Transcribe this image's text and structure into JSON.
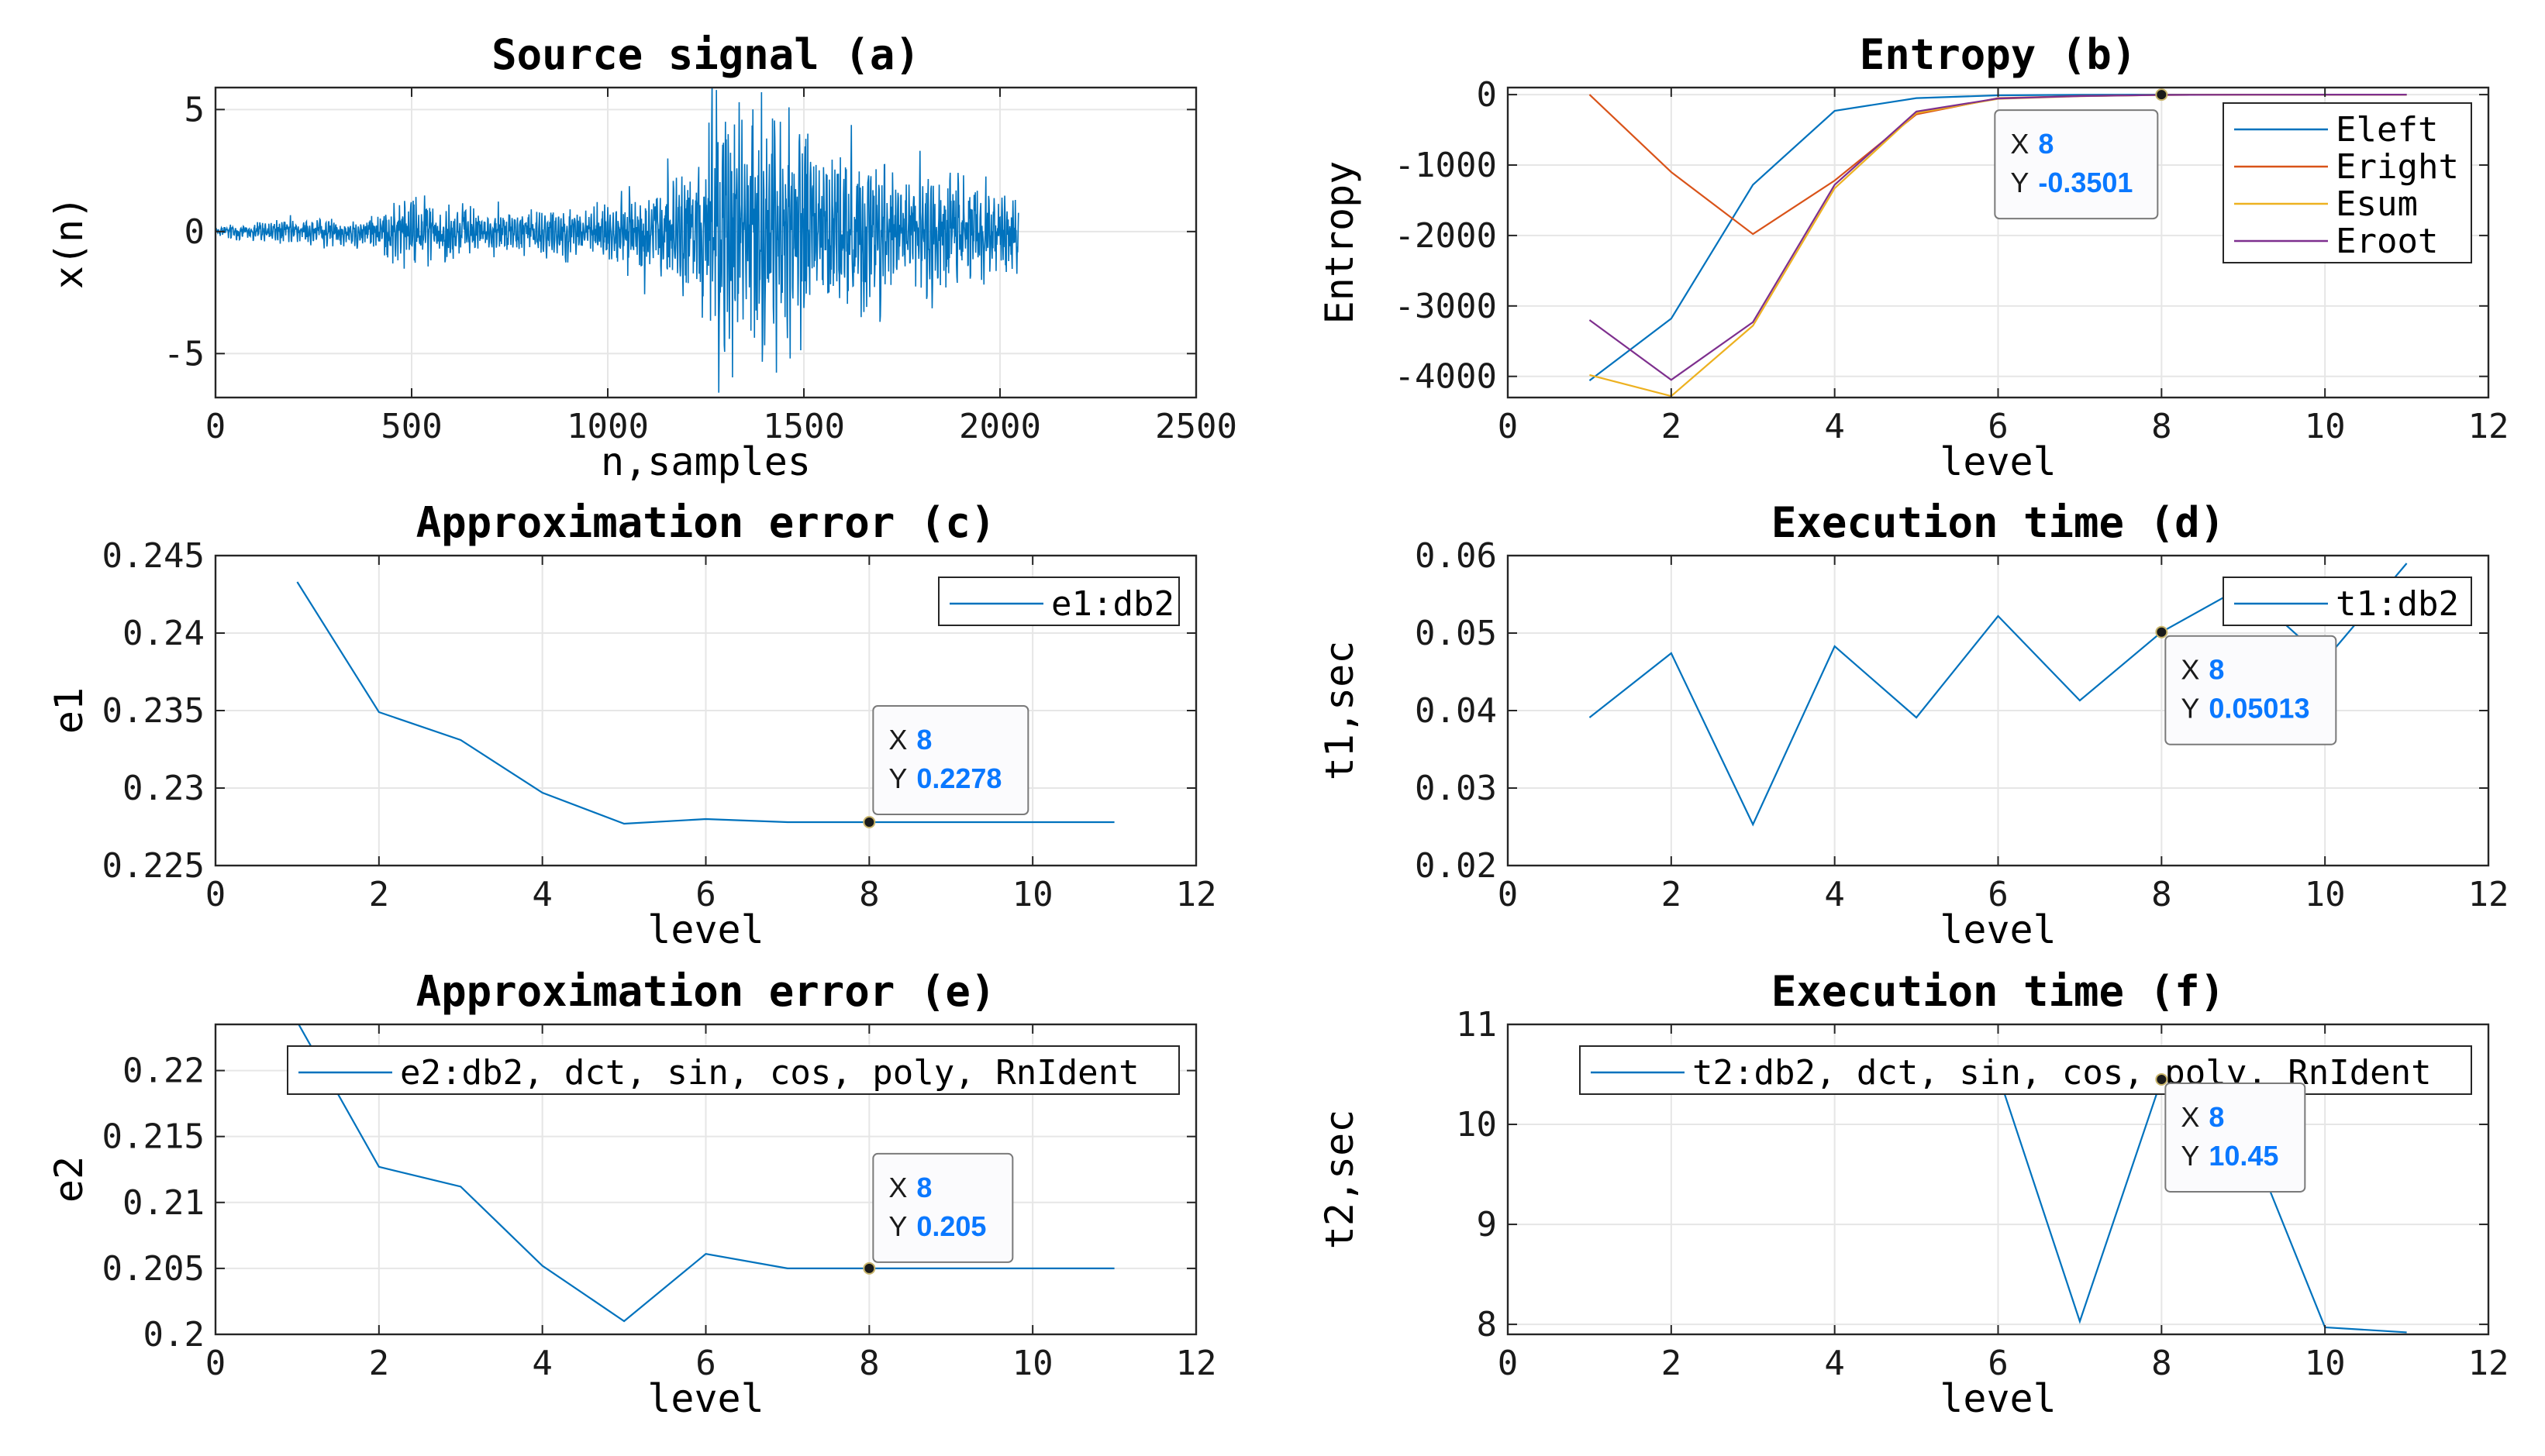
{
  "chart_data": [
    {
      "id": "a",
      "type": "line",
      "title": "Source signal (a)",
      "xlabel": "n,samples",
      "ylabel": "x(n)",
      "xlim": [
        0,
        2500
      ],
      "ylim": [
        -6.8,
        5.9
      ],
      "xticks": [
        0,
        500,
        1000,
        1500,
        2000,
        2500
      ],
      "yticks": [
        -5,
        0,
        5
      ],
      "signal": {
        "n_samples": 2048,
        "envelope": [
          [
            0,
            0.15
          ],
          [
            100,
            0.3
          ],
          [
            200,
            0.35
          ],
          [
            300,
            0.4
          ],
          [
            420,
            0.55
          ],
          [
            480,
            1.0
          ],
          [
            560,
            0.8
          ],
          [
            700,
            0.6
          ],
          [
            850,
            0.7
          ],
          [
            980,
            0.7
          ],
          [
            1030,
            0.95
          ],
          [
            1150,
            1.6
          ],
          [
            1240,
            2.4
          ],
          [
            1270,
            3.5
          ],
          [
            1320,
            3.6
          ],
          [
            1450,
            3.0
          ],
          [
            1550,
            2.4
          ],
          [
            1700,
            2.0
          ],
          [
            1850,
            1.6
          ],
          [
            1950,
            1.5
          ],
          [
            2048,
            1.2
          ]
        ],
        "spikes": [
          [
            1277,
            5.8
          ],
          [
            1283,
            -6.6
          ],
          [
            1300,
            4.5
          ],
          [
            1310,
            -4.4
          ],
          [
            1440,
            4.5
          ],
          [
            1465,
            -5.2
          ],
          [
            1505,
            3.8
          ]
        ]
      },
      "series": [
        {
          "name": "x(n)",
          "color": "#0072BD"
        }
      ]
    },
    {
      "id": "b",
      "type": "line",
      "title": "Entropy (b)",
      "xlabel": "level",
      "ylabel": "Entropy",
      "xlim": [
        0,
        12
      ],
      "ylim": [
        -4300,
        100
      ],
      "xticks": [
        0,
        2,
        4,
        6,
        8,
        10,
        12
      ],
      "yticks": [
        -4000,
        -3000,
        -2000,
        -1000,
        0
      ],
      "legend": "top-right",
      "series": [
        {
          "name": "Eleft",
          "color": "#0072BD",
          "x": [
            1,
            2,
            3,
            4,
            5,
            6,
            7,
            8,
            9,
            10,
            11
          ],
          "values": [
            -4060,
            -3180,
            -1280,
            -230,
            -50,
            -10,
            -3,
            -0.35,
            -0.3,
            -0.3,
            -0.3
          ]
        },
        {
          "name": "Eright",
          "color": "#D95319",
          "x": [
            1,
            2,
            3,
            4,
            5,
            6,
            7,
            8,
            9,
            10,
            11
          ],
          "values": [
            0,
            -1100,
            -1980,
            -1220,
            -280,
            -50,
            -20,
            -5,
            -1,
            -0.5,
            -0.3
          ]
        },
        {
          "name": "Esum",
          "color": "#EDB120",
          "x": [
            1,
            2,
            3,
            4,
            5,
            6,
            7,
            8,
            9,
            10,
            11
          ],
          "values": [
            -3980,
            -4280,
            -3280,
            -1330,
            -260,
            -60,
            -23,
            -5,
            -1,
            -0.5,
            -0.3
          ]
        },
        {
          "name": "Eroot",
          "color": "#7E2F8E",
          "x": [
            1,
            2,
            3,
            4,
            5,
            6,
            7,
            8,
            9,
            10,
            11
          ],
          "values": [
            -3200,
            -4050,
            -3230,
            -1280,
            -240,
            -55,
            -21,
            -5,
            -1,
            -0.5,
            -0.3
          ]
        }
      ],
      "datatip": {
        "x_label": "X",
        "x_value": "8",
        "y_label": "Y",
        "y_value": "-0.3501",
        "at": [
          8,
          -0.3501
        ]
      }
    },
    {
      "id": "c",
      "type": "line",
      "title": "Approximation error (c)",
      "xlabel": "level",
      "ylabel": "e1",
      "xlim": [
        0,
        12
      ],
      "ylim": [
        0.225,
        0.245
      ],
      "xticks": [
        0,
        2,
        4,
        6,
        8,
        10,
        12
      ],
      "yticks": [
        0.225,
        0.23,
        0.235,
        0.24,
        0.245
      ],
      "legend": "top-right",
      "series": [
        {
          "name": "e1:db2",
          "color": "#0072BD",
          "x": [
            1,
            2,
            3,
            4,
            5,
            6,
            7,
            8,
            9,
            10,
            11
          ],
          "values": [
            0.2433,
            0.2349,
            0.2331,
            0.2297,
            0.2277,
            0.228,
            0.2278,
            0.2278,
            0.2278,
            0.2278,
            0.2278
          ]
        }
      ],
      "datatip": {
        "x_label": "X",
        "x_value": "8",
        "y_label": "Y",
        "y_value": "0.2278",
        "at": [
          8,
          0.2278
        ]
      }
    },
    {
      "id": "d",
      "type": "line",
      "title": "Execution time (d)",
      "xlabel": "level",
      "ylabel": "t1,sec",
      "xlim": [
        0,
        12
      ],
      "ylim": [
        0.02,
        0.06
      ],
      "xticks": [
        0,
        2,
        4,
        6,
        8,
        10,
        12
      ],
      "yticks": [
        0.02,
        0.03,
        0.04,
        0.05,
        0.06
      ],
      "legend": "top-right",
      "series": [
        {
          "name": "t1:db2",
          "color": "#0072BD",
          "x": [
            1,
            2,
            3,
            4,
            5,
            6,
            7,
            8,
            9,
            10,
            11
          ],
          "values": [
            0.0391,
            0.0474,
            0.0253,
            0.0483,
            0.0391,
            0.0522,
            0.0413,
            0.05013,
            0.056,
            0.0465,
            0.059
          ]
        }
      ],
      "datatip": {
        "x_label": "X",
        "x_value": "8",
        "y_label": "Y",
        "y_value": "0.05013",
        "at": [
          8,
          0.05013
        ]
      }
    },
    {
      "id": "e",
      "type": "line",
      "title": "Approximation error (e)",
      "xlabel": "level",
      "ylabel": "e2",
      "xlim": [
        0,
        12
      ],
      "ylim": [
        0.2,
        0.2235
      ],
      "xticks": [
        0,
        2,
        4,
        6,
        8,
        10,
        12
      ],
      "yticks": [
        0.2,
        0.205,
        0.21,
        0.215,
        0.22
      ],
      "legend": "top-right",
      "series": [
        {
          "name": "e2:db2, dct, sin, cos, poly, RnIdent",
          "color": "#0072BD",
          "x": [
            1,
            2,
            3,
            4,
            5,
            6,
            7,
            8,
            9,
            10,
            11
          ],
          "values": [
            0.2237,
            0.2127,
            0.2112,
            0.2052,
            0.201,
            0.2061,
            0.205,
            0.205,
            0.205,
            0.205,
            0.205
          ]
        }
      ],
      "datatip": {
        "x_label": "X",
        "x_value": "8",
        "y_label": "Y",
        "y_value": "0.205",
        "at": [
          8,
          0.205
        ]
      }
    },
    {
      "id": "f",
      "type": "line",
      "title": "Execution time (f)",
      "xlabel": "level",
      "ylabel": "t2,sec",
      "xlim": [
        0,
        12
      ],
      "ylim": [
        7.9,
        11
      ],
      "xticks": [
        0,
        2,
        4,
        6,
        8,
        10,
        12
      ],
      "yticks": [
        8,
        9,
        10,
        11
      ],
      "legend": "top-right",
      "series": [
        {
          "name": "t2:db2, dct, sin, cos, poly, RnIdent",
          "color": "#0072BD",
          "x": [
            6,
            7,
            8,
            9,
            10,
            11
          ],
          "values": [
            10.5,
            8.03,
            10.45,
            10.0,
            7.97,
            7.92
          ]
        }
      ],
      "datatip": {
        "x_label": "X",
        "x_value": "8",
        "y_label": "Y",
        "y_value": "10.45",
        "at": [
          8,
          10.45
        ]
      }
    }
  ]
}
